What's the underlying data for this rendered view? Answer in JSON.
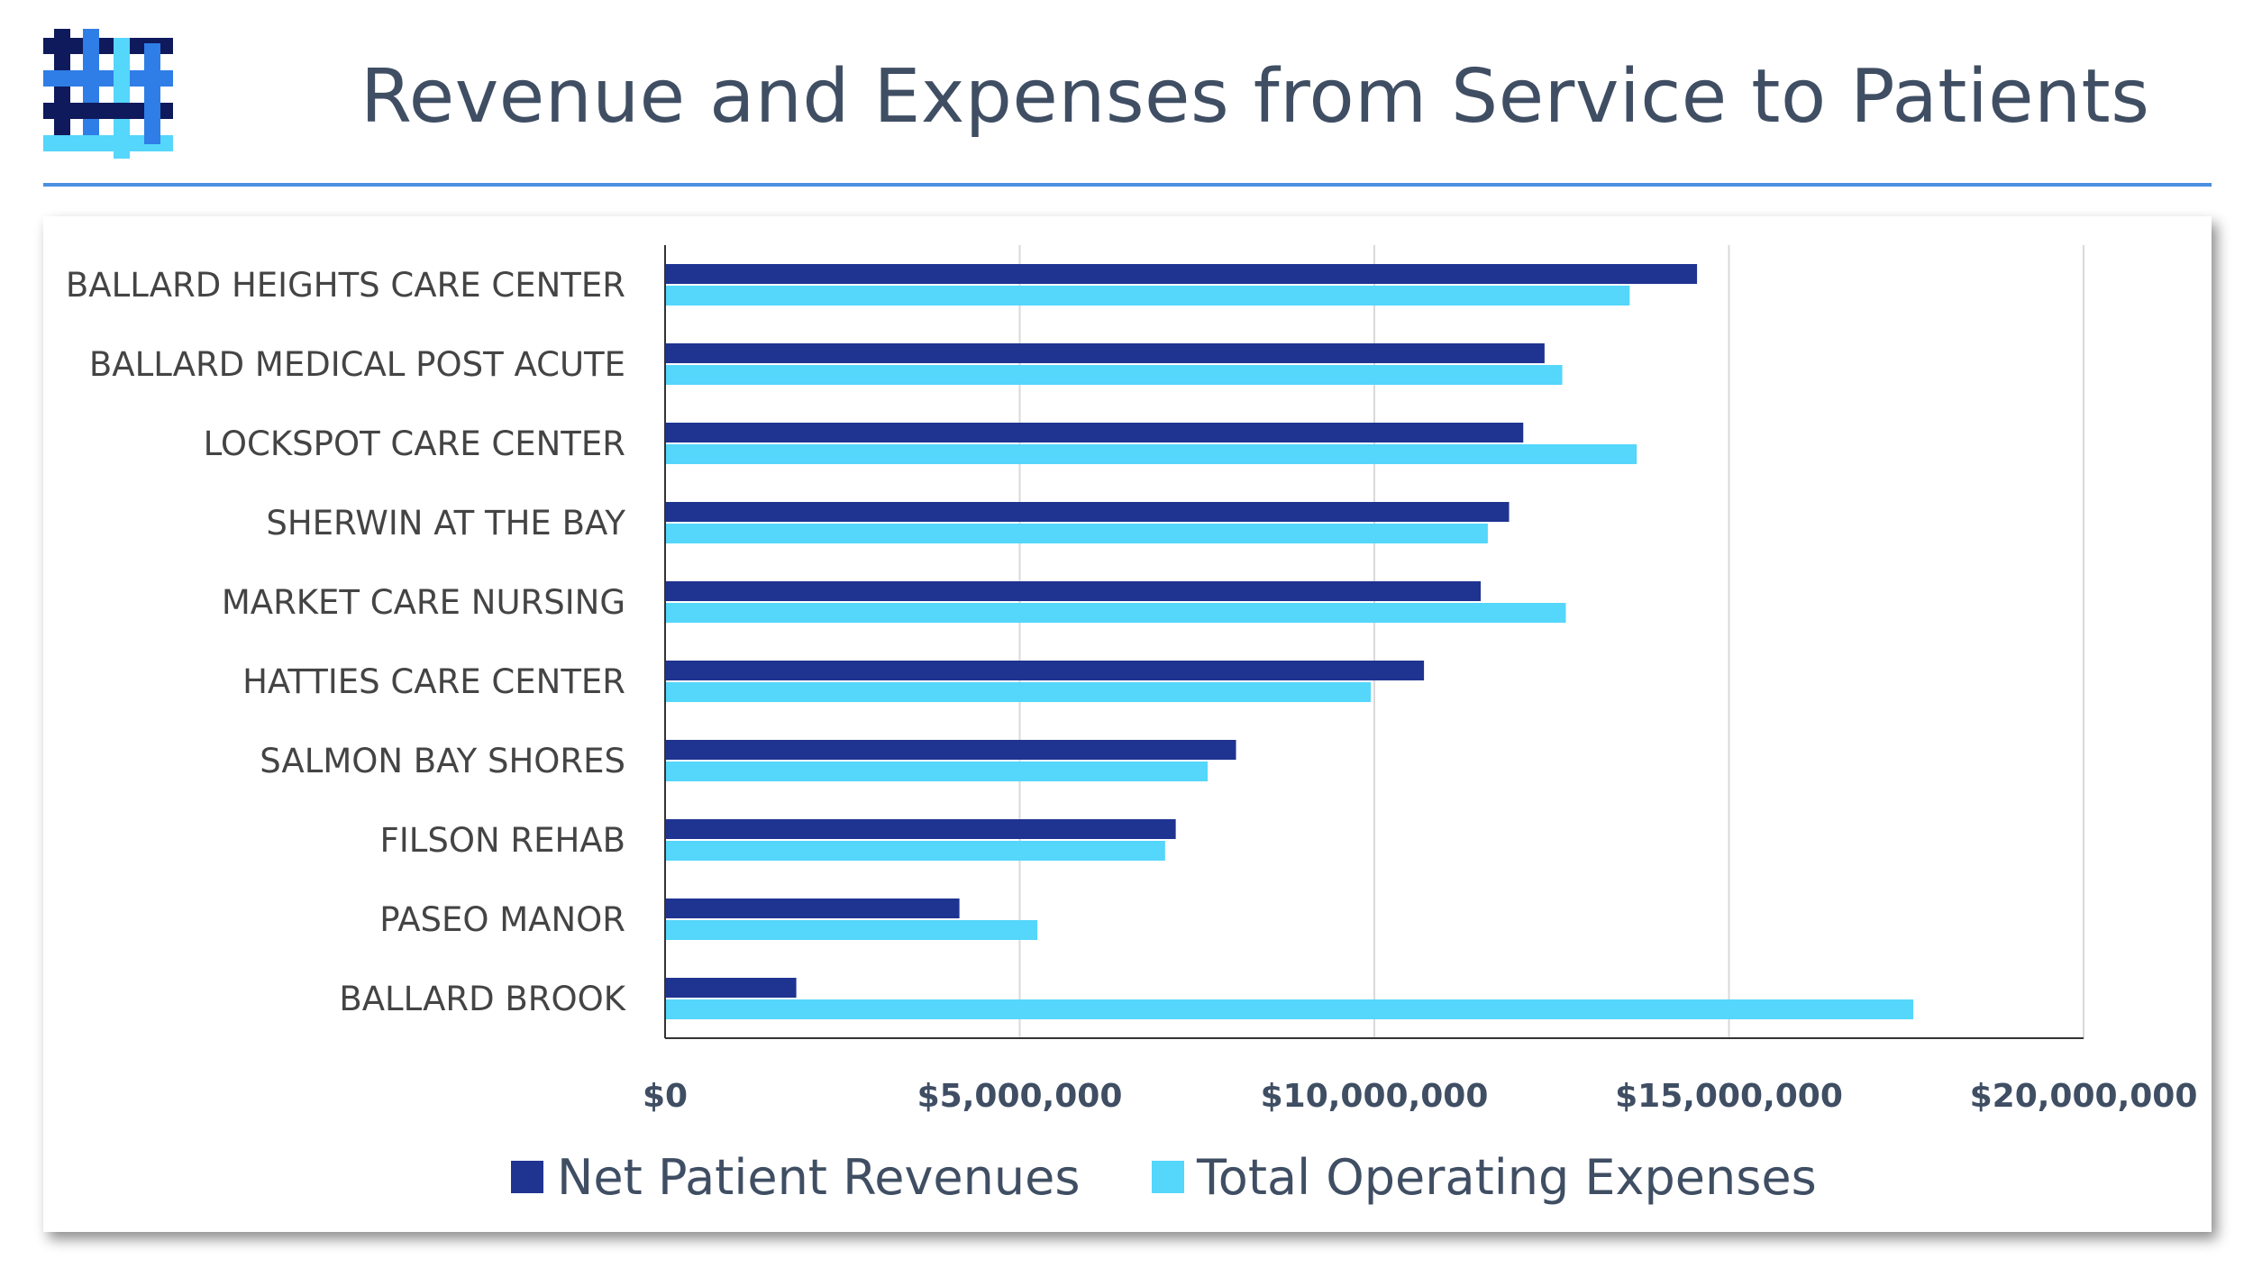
{
  "header": {
    "title": "Revenue and Expenses from Service to Patients",
    "logo_icon": "hashtag-weave-logo"
  },
  "colors": {
    "revenue": "#1f3391",
    "expenses": "#55d6fb",
    "grid": "#d9d9d9",
    "axis": "#333333",
    "title": "#3f4e63",
    "rule": "#4a8fe0"
  },
  "chart_data": {
    "type": "bar",
    "orientation": "horizontal",
    "categories": [
      "BALLARD HEIGHTS CARE CENTER",
      "BALLARD MEDICAL POST ACUTE",
      "LOCKSPOT CARE CENTER",
      "SHERWIN AT THE BAY",
      "MARKET CARE NURSING",
      "HATTIES CARE CENTER",
      "SALMON BAY SHORES",
      "FILSON REHAB",
      "PASEO MANOR",
      "BALLARD BROOK"
    ],
    "series": [
      {
        "name": "Net Patient Revenues",
        "color": "#1f3391",
        "values": [
          14550000,
          12400000,
          12100000,
          11900000,
          11500000,
          10700000,
          8050000,
          7200000,
          4150000,
          1850000
        ]
      },
      {
        "name": "Total Operating Expenses",
        "color": "#55d6fb",
        "values": [
          13600000,
          12650000,
          13700000,
          11600000,
          12700000,
          9950000,
          7650000,
          7050000,
          5250000,
          17600000
        ]
      }
    ],
    "xlim": [
      0,
      20000000
    ],
    "ticks": [
      0,
      5000000,
      10000000,
      15000000,
      20000000
    ],
    "tick_labels": [
      "$0",
      "$5,000,000",
      "$10,000,000",
      "$15,000,000",
      "$20,000,000"
    ],
    "grid": true,
    "legend": "bottom",
    "xlabel": "",
    "ylabel": ""
  }
}
